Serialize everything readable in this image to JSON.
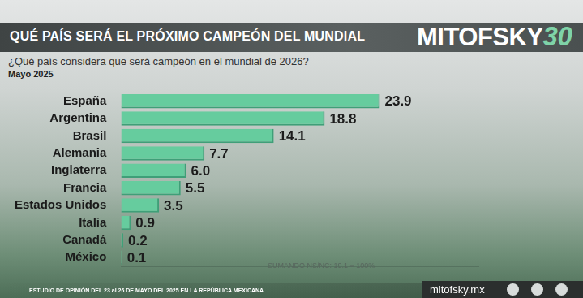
{
  "chart_data": {
    "type": "bar",
    "orientation": "horizontal",
    "title": "QUÉ PAÍS SERÁ EL PRÓXIMO CAMPEÓN DEL MUNDIAL",
    "subtitle": "¿Qué país considera que será campeón en el mundial de 2026?",
    "period": "Mayo 2025",
    "note": "SUMANDO NS/NC: 19.1 = 100%",
    "categories": [
      "España",
      "Argentina",
      "Brasil",
      "Alemania",
      "Inglaterra",
      "Francia",
      "Estados Unidos",
      "Italia",
      "Canadá",
      "México"
    ],
    "values": [
      23.9,
      18.8,
      14.1,
      7.7,
      6.0,
      5.5,
      3.5,
      0.9,
      0.2,
      0.1
    ],
    "value_labels": [
      "23.9",
      "18.8",
      "14.1",
      "7.7",
      "6.0",
      "5.5",
      "3.5",
      "0.9",
      "0.2",
      "0.1"
    ],
    "color": "#66cc9e",
    "xlim": [
      0,
      33
    ],
    "grid": false,
    "data_labels": true,
    "tick_labels": "y"
  },
  "logo": {
    "name": "MITOFSKY",
    "badge": "30"
  },
  "footer": {
    "study": "ESTUDIO DE OPINIÓN DEL 23 al 26 DE MAYO DEL 2025 EN LA REPÚBLICA MEXICANA",
    "website": "mitofsky.mx"
  }
}
